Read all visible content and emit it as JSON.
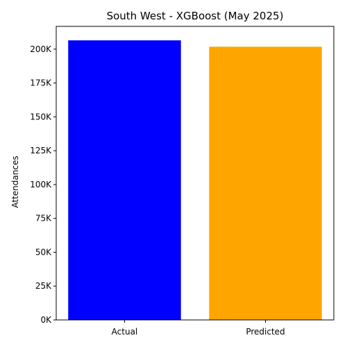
{
  "chart_data": {
    "type": "bar",
    "title": "South West - XGBoost (May 2025)",
    "xlabel": "",
    "ylabel": "Attendances",
    "categories": [
      "Actual",
      "Predicted"
    ],
    "values": [
      206500,
      201800
    ],
    "colors": [
      "#0000ff",
      "#ffa500"
    ],
    "ylim": [
      0,
      216825
    ],
    "yticks": [
      0,
      25000,
      50000,
      75000,
      100000,
      125000,
      150000,
      175000,
      200000
    ],
    "ytick_labels": [
      "0K",
      "25K",
      "50K",
      "75K",
      "100K",
      "125K",
      "150K",
      "175K",
      "200K"
    ],
    "grid": false,
    "legend": "none"
  }
}
